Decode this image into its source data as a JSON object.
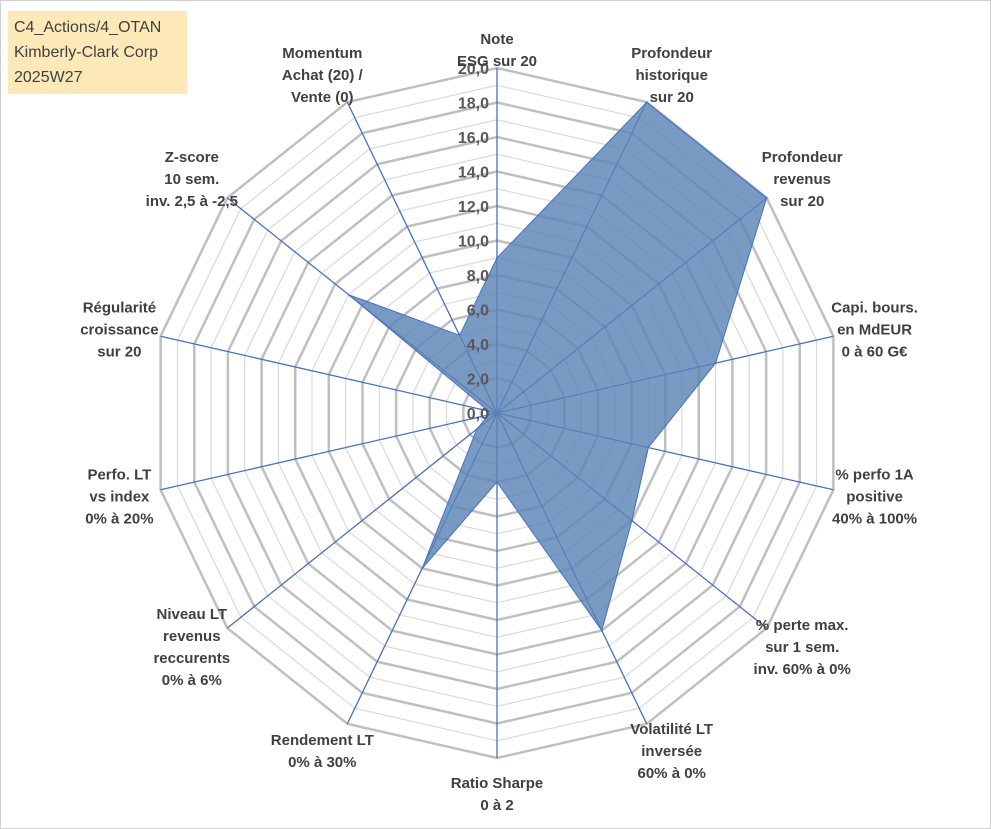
{
  "header": {
    "lines": [
      "C4_Actions/4_OTAN",
      "Kimberly-Clark Corp",
      "2025W27"
    ]
  },
  "chart_data": {
    "type": "radar",
    "title": "",
    "rlim": [
      0,
      20
    ],
    "ticks": [
      "0,0",
      "2,0",
      "4,0",
      "6,0",
      "8,0",
      "10,0",
      "12,0",
      "14,0",
      "16,0",
      "18,0",
      "20,0"
    ],
    "tick_values": [
      0,
      2,
      4,
      6,
      8,
      10,
      12,
      14,
      16,
      18,
      20
    ],
    "grid": true,
    "axes": [
      {
        "lines": [
          "Note",
          "ESG sur 20"
        ]
      },
      {
        "lines": [
          "Profondeur",
          "historique",
          "sur 20"
        ]
      },
      {
        "lines": [
          "Profondeur",
          "revenus",
          "sur 20"
        ]
      },
      {
        "lines": [
          "Capi. bours.",
          "en MdEUR",
          "0 à 60 G€"
        ]
      },
      {
        "lines": [
          "% perfo 1A",
          "positive",
          "40% à 100%"
        ]
      },
      {
        "lines": [
          "% perte max.",
          "sur 1 sem.",
          "inv. 60% à 0%"
        ]
      },
      {
        "lines": [
          "Volatilité LT",
          "inversée",
          "60% à 0%"
        ]
      },
      {
        "lines": [
          "Ratio Sharpe",
          "0 à 2"
        ]
      },
      {
        "lines": [
          "Rendement LT",
          "0% à 30%"
        ]
      },
      {
        "lines": [
          "Niveau LT",
          "revenus",
          "reccurents",
          "0% à 6%"
        ]
      },
      {
        "lines": [
          "Perfo. LT",
          "vs index",
          "0% à 20%"
        ]
      },
      {
        "lines": [
          "Régularité",
          "croissance",
          "sur 20"
        ]
      },
      {
        "lines": [
          "Z-score",
          "10 sem.",
          "inv. 2,5 à -2,5"
        ]
      },
      {
        "lines": [
          "Momentum",
          "Achat (20) /",
          "Vente (0)"
        ]
      }
    ],
    "series": [
      {
        "values": [
          9.0,
          20.0,
          20.0,
          13.0,
          9.0,
          10.0,
          14.0,
          4.0,
          10.0,
          1.5,
          0.5,
          0.5,
          11.0,
          5.0
        ]
      }
    ],
    "colors": {
      "fill": "#5b84b4",
      "fill_opacity": 0.82,
      "stroke": "#4472c4",
      "spoke": "#4472c4",
      "grid": "#bfbfbf",
      "ring_minor": "#d9d9d9"
    }
  }
}
